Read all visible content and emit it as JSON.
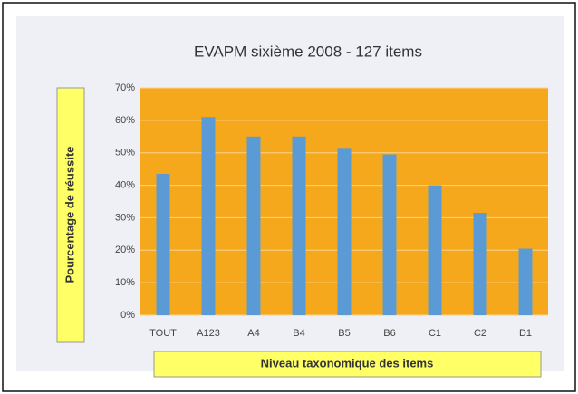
{
  "chart_data": {
    "type": "bar",
    "title": "EVAPM sixième 2008 - 127 items",
    "x_label": "Niveau taxonomique des items",
    "y_label": "Pourcentage de réussite",
    "categories": [
      "TOUT",
      "A123",
      "A4",
      "B4",
      "B5",
      "B6",
      "C1",
      "C2",
      "D1"
    ],
    "values": [
      43.5,
      61,
      55,
      55,
      51.5,
      49.5,
      40,
      31.5,
      20.5
    ],
    "color": "#5b9bd5",
    "plot_background": "#f6a81c",
    "ylim": [
      0,
      70
    ],
    "yticks": [
      {
        "value": 0,
        "label": "0%"
      },
      {
        "value": 10,
        "label": "10%"
      },
      {
        "value": 20,
        "label": "20%"
      },
      {
        "value": 30,
        "label": "30%"
      },
      {
        "value": 40,
        "label": "40%"
      },
      {
        "value": 50,
        "label": "50%"
      },
      {
        "value": 60,
        "label": "60%"
      },
      {
        "value": 70,
        "label": "70%"
      }
    ],
    "grid": true
  }
}
